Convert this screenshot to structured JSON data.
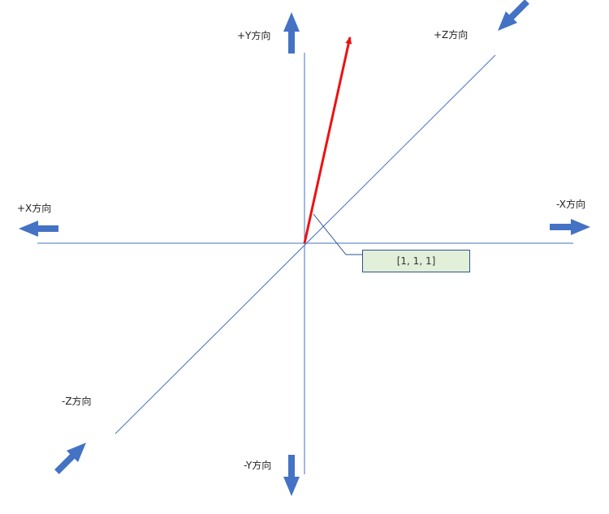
{
  "labels": {
    "plus_y": "+Y方向",
    "minus_y": "-Y方向",
    "plus_x": "+X方向",
    "minus_x": "-X方向",
    "plus_z": "+Z方向",
    "minus_z": "-Z方向"
  },
  "vector": {
    "components": [
      1,
      1,
      1
    ],
    "label": "[1, 1, 1]",
    "color": "#ee1111"
  },
  "colors": {
    "axis_line": "#4472c4",
    "direction_arrow": "#4472c4",
    "callout_fill": "#e2efd9",
    "callout_border": "#2f528f"
  }
}
